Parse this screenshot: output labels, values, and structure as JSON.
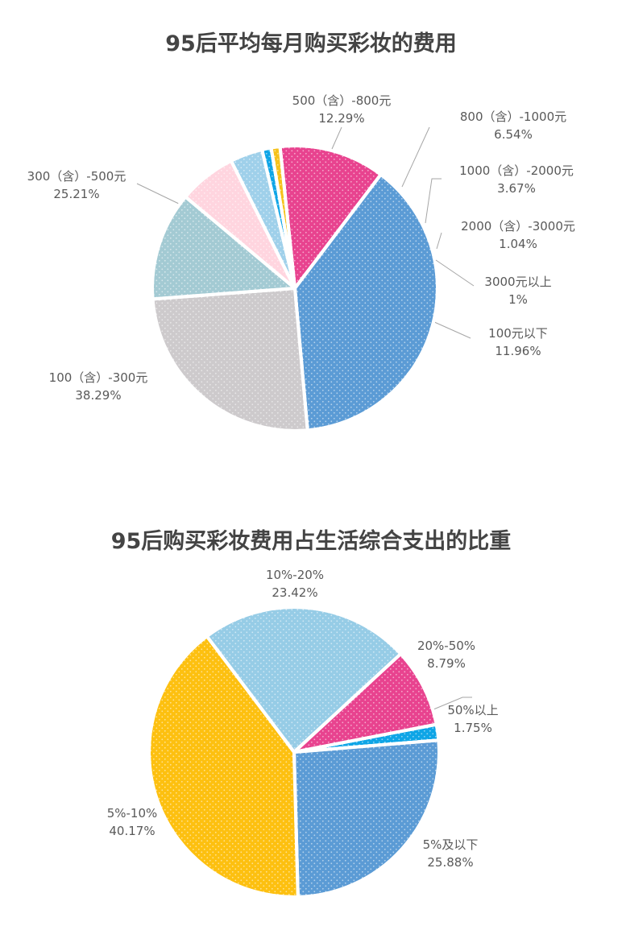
{
  "chart_data": [
    {
      "type": "pie",
      "title": "95后平均每月购买彩妆的费用",
      "slices": [
        {
          "label": "100元以下",
          "value": 11.96,
          "value_text": "11.96%",
          "color": "#e8438f"
        },
        {
          "label": "100（含）-300元",
          "value": 38.29,
          "value_text": "38.29%",
          "color": "#5b9bd5"
        },
        {
          "label": "300（含）-500元",
          "value": 25.21,
          "value_text": "25.21%",
          "color": "#cdcacc"
        },
        {
          "label": "500（含）-800元",
          "value": 12.29,
          "value_text": "12.29%",
          "color": "#a3cad3"
        },
        {
          "label": "800（含）-1000元",
          "value": 6.54,
          "value_text": "6.54%",
          "color": "#ffd5df"
        },
        {
          "label": "1000（含）-2000元",
          "value": 3.67,
          "value_text": "3.67%",
          "color": "#9fd0ea"
        },
        {
          "label": "2000（含）-3000元",
          "value": 1.04,
          "value_text": "1.04%",
          "color": "#0ea5e6"
        },
        {
          "label": "3000元以上",
          "value": 1,
          "value_text": "1%",
          "color": "#f5c21b"
        }
      ]
    },
    {
      "type": "pie",
      "title": "95后购买彩妆费用占生活综合支出的比重",
      "slices": [
        {
          "label": "50%以上",
          "value": 1.75,
          "value_text": "1.75%",
          "color": "#0ea5e6"
        },
        {
          "label": "5%及以下",
          "value": 25.88,
          "value_text": "25.88%",
          "color": "#5b9bd5"
        },
        {
          "label": "5%-10%",
          "value": 40.17,
          "value_text": "40.17%",
          "color": "#fdc010"
        },
        {
          "label": "10%-20%",
          "value": 23.42,
          "value_text": "23.42%",
          "color": "#96cce6"
        },
        {
          "label": "20%-50%",
          "value": 8.79,
          "value_text": "8.79%",
          "color": "#e8438f"
        }
      ]
    }
  ]
}
